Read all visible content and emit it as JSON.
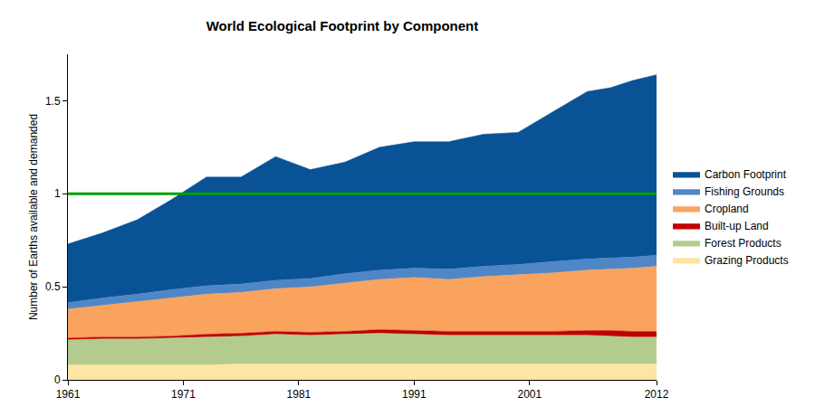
{
  "chart_data": {
    "type": "area",
    "title": "World Ecological Footprint by Component",
    "y_label": "Number of Earths available and demanded",
    "x": [
      1961,
      1964,
      1967,
      1970,
      1973,
      1976,
      1979,
      1982,
      1985,
      1988,
      1991,
      1994,
      1997,
      2000,
      2003,
      2006,
      2008,
      2010,
      2012
    ],
    "stacked": true,
    "grid": false,
    "legend": "right",
    "xlim": [
      1961,
      2012
    ],
    "xticks": [
      1961,
      1971,
      1981,
      1991,
      2001,
      2012
    ],
    "ylim": [
      0,
      1.75
    ],
    "yticks": [
      0,
      0.5,
      1,
      1.5
    ],
    "reference_line": {
      "value": 1,
      "color": "#00a000"
    },
    "series": [
      {
        "name": "Grazing Products",
        "color": "#fde5a3",
        "values": [
          0.08,
          0.08,
          0.08,
          0.08,
          0.08,
          0.085,
          0.085,
          0.085,
          0.085,
          0.085,
          0.085,
          0.085,
          0.085,
          0.085,
          0.085,
          0.085,
          0.085,
          0.085,
          0.085
        ]
      },
      {
        "name": "Forest Products",
        "color": "#b3cc8e",
        "values": [
          0.135,
          0.14,
          0.14,
          0.145,
          0.15,
          0.15,
          0.16,
          0.155,
          0.16,
          0.165,
          0.16,
          0.155,
          0.155,
          0.155,
          0.155,
          0.155,
          0.15,
          0.145,
          0.145
        ]
      },
      {
        "name": "Built-up Land",
        "color": "#c00000",
        "values": [
          0.01,
          0.01,
          0.01,
          0.01,
          0.015,
          0.015,
          0.015,
          0.015,
          0.015,
          0.02,
          0.02,
          0.02,
          0.02,
          0.02,
          0.02,
          0.025,
          0.03,
          0.03,
          0.03
        ]
      },
      {
        "name": "Cropland",
        "color": "#f9a35e",
        "values": [
          0.155,
          0.17,
          0.19,
          0.205,
          0.215,
          0.22,
          0.23,
          0.245,
          0.26,
          0.27,
          0.285,
          0.28,
          0.295,
          0.305,
          0.315,
          0.325,
          0.33,
          0.34,
          0.35
        ]
      },
      {
        "name": "Fishing Grounds",
        "color": "#4f86c6",
        "values": [
          0.035,
          0.04,
          0.04,
          0.045,
          0.045,
          0.045,
          0.045,
          0.045,
          0.05,
          0.05,
          0.05,
          0.055,
          0.055,
          0.055,
          0.06,
          0.06,
          0.06,
          0.06,
          0.06
        ]
      },
      {
        "name": "Carbon Footprint",
        "color": "#0a5296",
        "values": [
          0.315,
          0.35,
          0.4,
          0.485,
          0.585,
          0.575,
          0.665,
          0.585,
          0.6,
          0.66,
          0.68,
          0.685,
          0.71,
          0.71,
          0.805,
          0.9,
          0.915,
          0.95,
          0.97
        ]
      }
    ]
  }
}
